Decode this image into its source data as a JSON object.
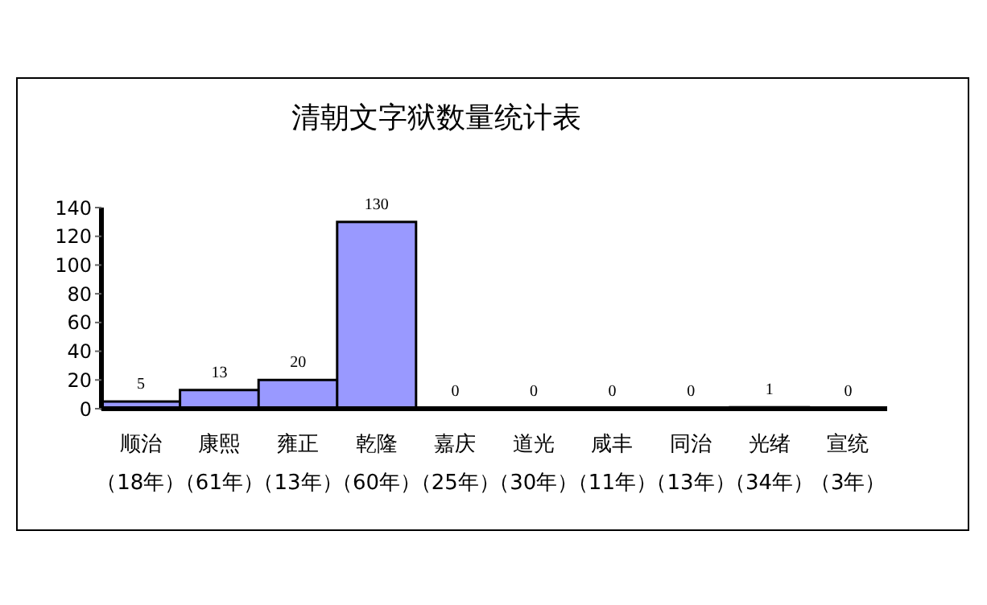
{
  "chart_data": {
    "type": "bar",
    "title": "清朝文字狱数量统计表",
    "categories": [
      "顺治（18年）",
      "康熙（61年）",
      "雍正（13年）",
      "乾隆（60年）",
      "嘉庆（25年）",
      "道光（30年）",
      "咸丰（11年）",
      "同治（13年）",
      "光绪（34年）",
      "宣统（3年）"
    ],
    "values": [
      5,
      13,
      20,
      130,
      0,
      0,
      0,
      0,
      1,
      0
    ],
    "color": "#9999ff",
    "ylim": [
      0,
      140
    ],
    "yticks": [
      0,
      20,
      40,
      60,
      80,
      100,
      120,
      140
    ],
    "grid": false,
    "data_labels": true
  }
}
